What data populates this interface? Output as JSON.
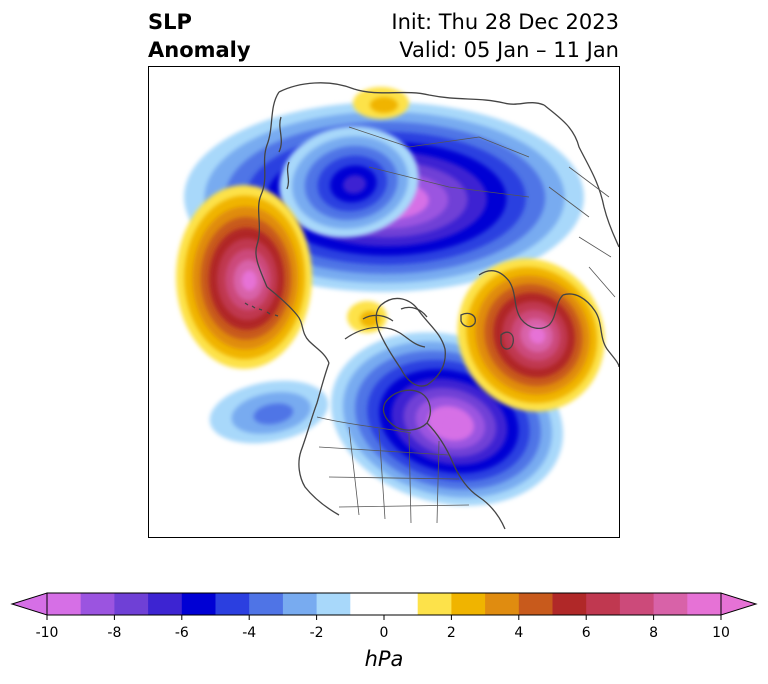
{
  "title": {
    "left_line1": "SLP",
    "left_line2": "Anomaly",
    "right_line1": "Init: Thu 28 Dec 2023",
    "right_line2": "Valid: 05 Jan – 11 Jan"
  },
  "map": {
    "projection": "north-polar stereographic",
    "coastline_color": "#444444",
    "centers": [
      {
        "sign": "negative",
        "region": "Siberia / Arctic Russia"
      },
      {
        "sign": "negative",
        "region": "Eastern Canada / Hudson Bay"
      },
      {
        "sign": "positive",
        "region": "Northern Europe / Scandinavia"
      },
      {
        "sign": "positive",
        "region": "North Atlantic / Iceland"
      },
      {
        "sign": "positive",
        "region": "North Pacific / Gulf of Alaska"
      }
    ]
  },
  "colorbar": {
    "units": "hPa",
    "min": -10,
    "max": 10,
    "extend": "both",
    "tick_labels": [
      "-10",
      "-8",
      "-6",
      "-4",
      "-2",
      "0",
      "2",
      "4",
      "6",
      "8",
      "10"
    ],
    "bins": [
      {
        "from": -10,
        "to": -9,
        "color": "#d66fe6"
      },
      {
        "from": -9,
        "to": -8,
        "color": "#9b54e0"
      },
      {
        "from": -8,
        "to": -7,
        "color": "#6f40d6"
      },
      {
        "from": -7,
        "to": -6,
        "color": "#3d24d2"
      },
      {
        "from": -6,
        "to": -5,
        "color": "#0000d4"
      },
      {
        "from": -5,
        "to": -4,
        "color": "#2b3fe0"
      },
      {
        "from": -4,
        "to": -3,
        "color": "#4f74e6"
      },
      {
        "from": -3,
        "to": -2,
        "color": "#78abf0"
      },
      {
        "from": -2,
        "to": -1,
        "color": "#a8d8fa"
      },
      {
        "from": -1,
        "to": 1,
        "color": "#ffffff"
      },
      {
        "from": 1,
        "to": 2,
        "color": "#fde24a"
      },
      {
        "from": 2,
        "to": 3,
        "color": "#f0b400"
      },
      {
        "from": 3,
        "to": 4,
        "color": "#e08c10"
      },
      {
        "from": 4,
        "to": 5,
        "color": "#c85a1c"
      },
      {
        "from": 5,
        "to": 6,
        "color": "#b02828"
      },
      {
        "from": 6,
        "to": 7,
        "color": "#c03850"
      },
      {
        "from": 7,
        "to": 8,
        "color": "#cc4a7a"
      },
      {
        "from": 8,
        "to": 9,
        "color": "#d862a8"
      },
      {
        "from": 9,
        "to": 10,
        "color": "#e672d6"
      }
    ],
    "under_color": "#d66fe6",
    "over_color": "#e672d6"
  }
}
